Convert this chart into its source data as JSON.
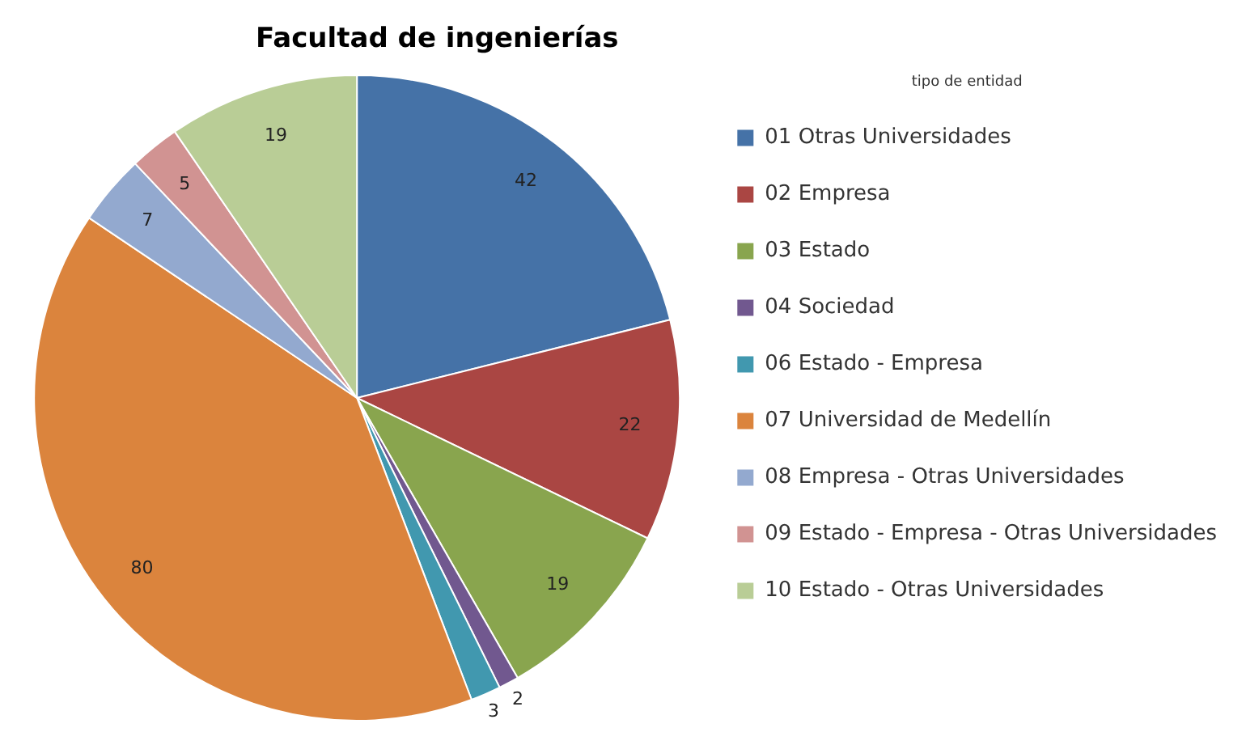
{
  "chart_data": {
    "type": "pie",
    "title": "Facultad de ingenierías",
    "legend_title": "tipo de entidad",
    "legend": "right",
    "data_labels": true,
    "categories": [
      "01 Otras Universidades",
      "02 Empresa",
      "03 Estado",
      "04 Sociedad",
      "06 Estado - Empresa",
      "07 Universidad de Medellín",
      "08 Empresa - Otras Universidades",
      "09 Estado - Empresa - Otras Universidades",
      "10 Estado - Otras Universidades"
    ],
    "values": [
      42,
      22,
      19,
      2,
      3,
      80,
      7,
      5,
      19
    ],
    "colors": [
      "#4572a7",
      "#aa4643",
      "#89a54e",
      "#71588f",
      "#4198af",
      "#db843d",
      "#93a9cf",
      "#d19392",
      "#b9cd96"
    ]
  }
}
